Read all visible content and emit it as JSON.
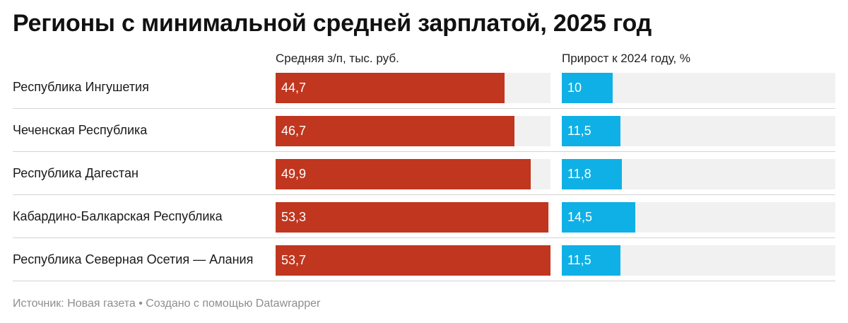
{
  "title": "Регионы с минимальной средней зарплатой, 2025 год",
  "columns": {
    "salary": "Средняя з/п, тыс. руб.",
    "growth": "Прирост к 2024 году, %"
  },
  "colors": {
    "salary": "#c0361f",
    "growth": "#0fb0e6",
    "track": "#f1f1f1"
  },
  "chart_data": {
    "type": "bar",
    "orientation": "horizontal",
    "categories": [
      "Республика Ингушетия",
      "Чеченская Республика",
      "Республика Дагестан",
      "Кабардино-Балкарская Республика",
      "Республика Северная Осетия — Алания"
    ],
    "series": [
      {
        "name": "Средняя з/п, тыс. руб.",
        "values": [
          44.7,
          46.7,
          49.9,
          53.3,
          53.7
        ],
        "labels": [
          "44,7",
          "46,7",
          "49,9",
          "53,3",
          "53,7"
        ],
        "max": 53.7
      },
      {
        "name": "Прирост к 2024 году, %",
        "values": [
          10,
          11.5,
          11.8,
          14.5,
          11.5
        ],
        "labels": [
          "10",
          "11,5",
          "11,8",
          "14,5",
          "11,5"
        ],
        "max": 53.7
      }
    ]
  },
  "footer": "Источник: Новая газета • Создано с помощью Datawrapper"
}
